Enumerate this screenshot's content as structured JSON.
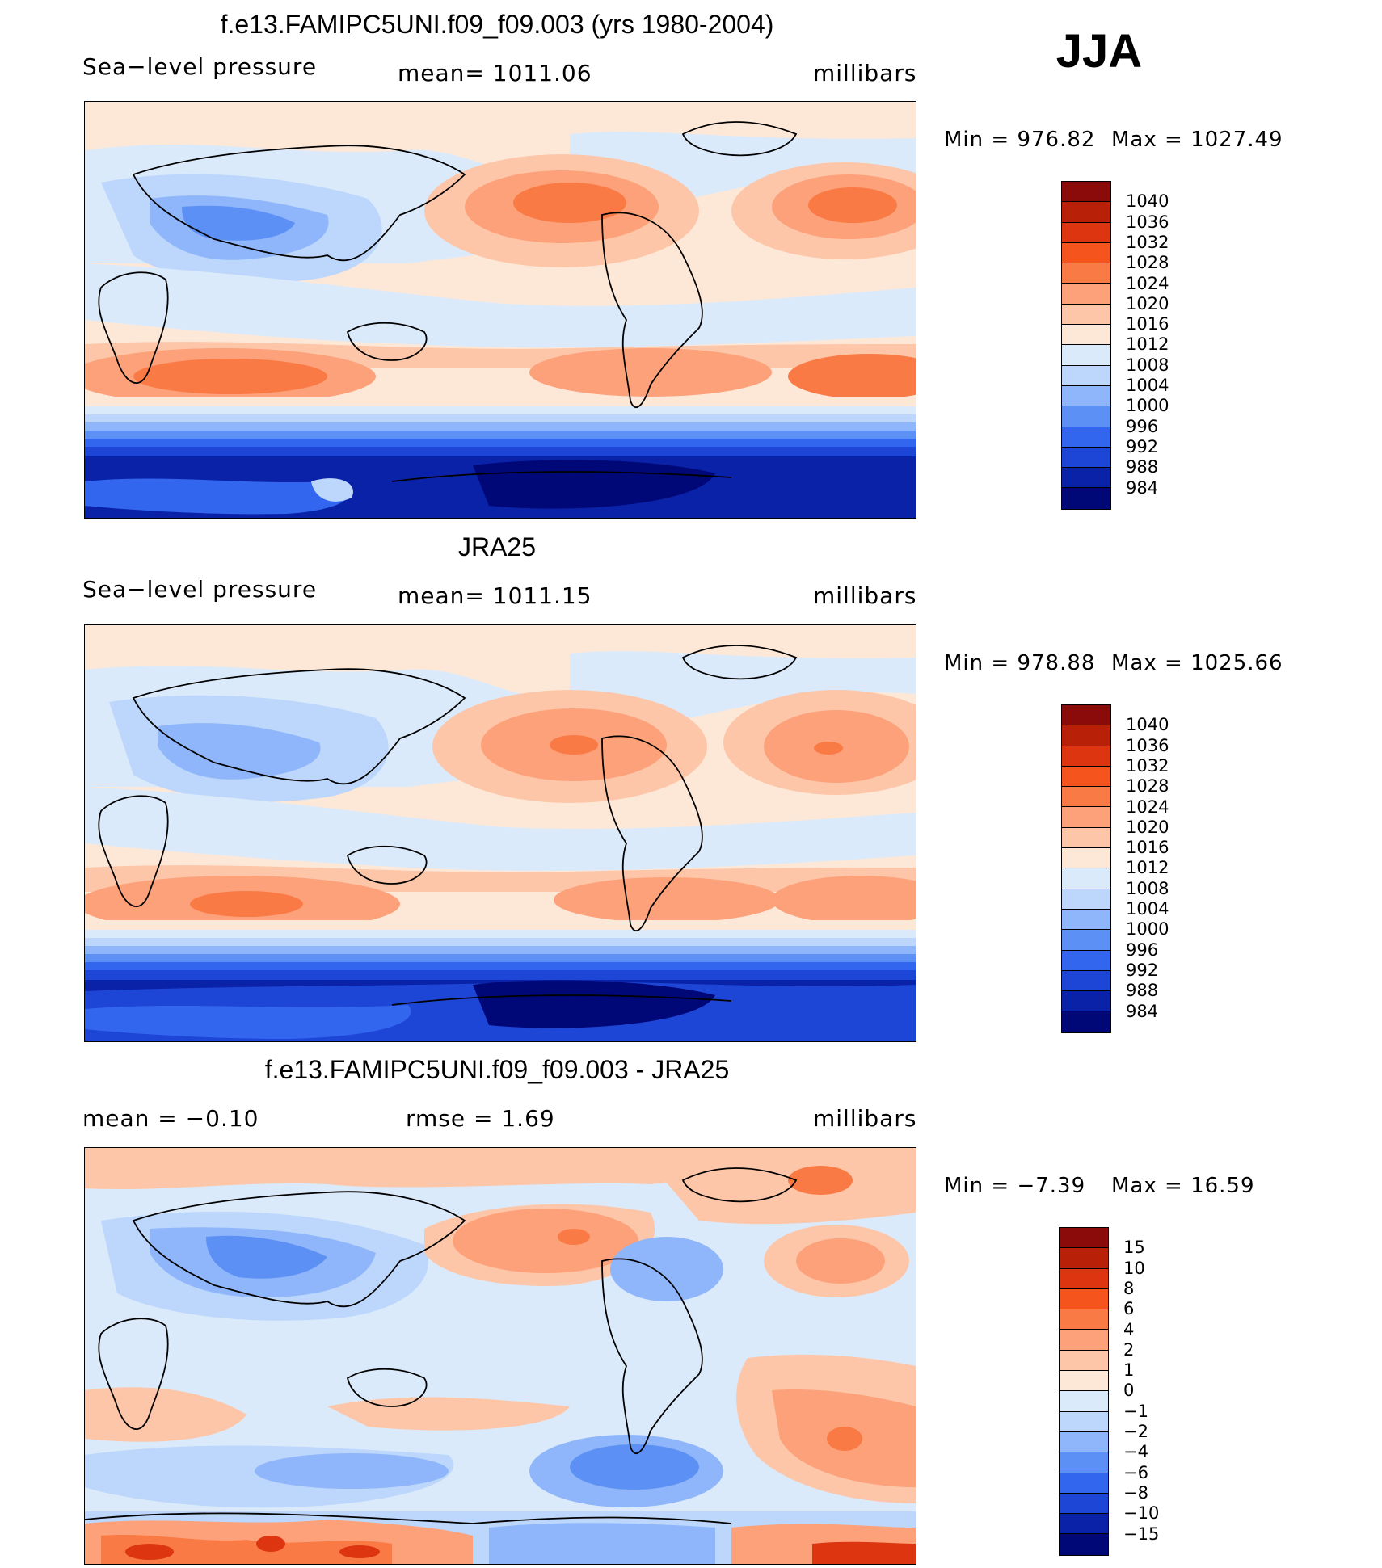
{
  "season": "JJA",
  "panels": [
    {
      "title": "f.e13.FAMIPC5UNI.f09_f09.003 (yrs 1980-2004)",
      "left_label": "Sea−level pressure",
      "center_label": "mean=  1011.06",
      "right_label": "millibars",
      "min_label": "Min  =  976.82",
      "max_label": "Max  =  1027.49"
    },
    {
      "title": "JRA25",
      "left_label": "Sea−level pressure",
      "center_label": "mean=  1011.15",
      "right_label": "millibars",
      "min_label": "Min  =  978.88",
      "max_label": "Max  =  1025.66"
    },
    {
      "title": "f.e13.FAMIPC5UNI.f09_f09.003 - JRA25",
      "left_label": "mean  =    −0.10",
      "center_label": "rmse  =     1.69",
      "right_label": "millibars",
      "min_label": "Min  =    −7.39",
      "max_label": "Max  =    16.59"
    }
  ],
  "colorbar_abs": {
    "levels": [
      "1040",
      "1036",
      "1032",
      "1028",
      "1024",
      "1020",
      "1016",
      "1012",
      "1008",
      "1004",
      "1000",
      "996",
      "992",
      "988",
      "984"
    ],
    "colors": [
      "#8b0a0a",
      "#b82108",
      "#dc3510",
      "#f5541c",
      "#fa7a45",
      "#fca17a",
      "#fdc6a8",
      "#fde8d8",
      "#dbeafa",
      "#bcd7fb",
      "#8fb6fa",
      "#5c90f5",
      "#3366ee",
      "#1e46d6",
      "#0a22a8",
      "#000878"
    ]
  },
  "colorbar_diff": {
    "levels": [
      "15",
      "10",
      "8",
      "6",
      "4",
      "2",
      "1",
      "0",
      "−1",
      "−2",
      "−4",
      "−6",
      "−8",
      "−10",
      "−15"
    ],
    "colors": [
      "#8b0a0a",
      "#b82108",
      "#dc3510",
      "#f5541c",
      "#fa7a45",
      "#fca17a",
      "#fdc6a8",
      "#fde8d8",
      "#dbeafa",
      "#bcd7fb",
      "#8fb6fa",
      "#5c90f5",
      "#3366ee",
      "#1e46d6",
      "#0a22a8",
      "#000878"
    ]
  }
}
